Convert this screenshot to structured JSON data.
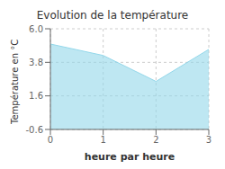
{
  "chart_data": {
    "type": "area",
    "title": "Evolution de la température",
    "xlabel": "heure par heure",
    "ylabel": "Température en °C",
    "x": [
      0,
      1,
      2,
      3
    ],
    "values": [
      5.0,
      4.25,
      2.55,
      4.65
    ],
    "xlim": [
      0,
      3
    ],
    "ylim": [
      -0.6,
      6.0
    ],
    "xticks": [
      0,
      1,
      2,
      3
    ],
    "yticks": [
      -0.6,
      1.6,
      3.8,
      {
        "value": 6.0,
        "label": "6.0"
      }
    ],
    "grid": true,
    "color": "#93d7ea"
  }
}
